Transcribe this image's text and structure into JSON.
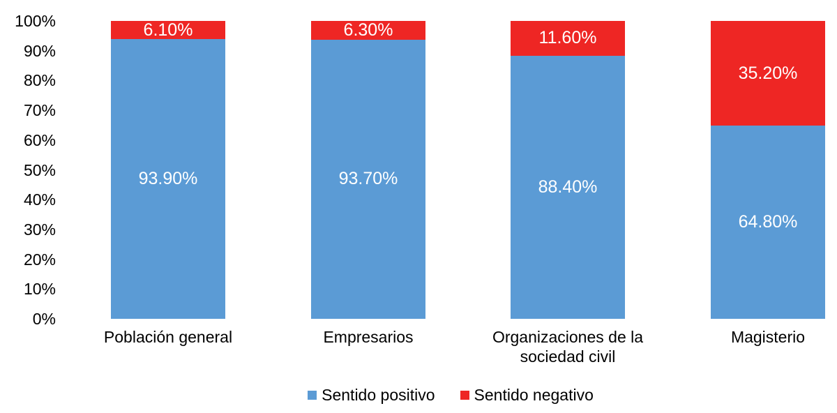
{
  "chart_data": {
    "type": "bar",
    "stacked": true,
    "percent_stacked": true,
    "title": "",
    "xlabel": "",
    "ylabel": "",
    "grid": false,
    "legend_position": "bottom",
    "categories": [
      "Población general",
      "Empresarios",
      "Organizaciones de la sociedad civil",
      "Magisterio"
    ],
    "series": [
      {
        "name": "Sentido positivo",
        "color": "#5B9BD5",
        "values": [
          93.9,
          93.7,
          88.4,
          64.8
        ],
        "labels": [
          "93.90%",
          "93.70%",
          "88.40%",
          "64.80%"
        ]
      },
      {
        "name": "Sentido negativo",
        "color": "#EE2624",
        "values": [
          6.1,
          6.3,
          11.6,
          35.2
        ],
        "labels": [
          "6.10%",
          "6.30%",
          "11.60%",
          "35.20%"
        ]
      }
    ],
    "y_axis": {
      "min": 0,
      "max": 100,
      "tick_step": 10,
      "tick_labels": [
        "0%",
        "10%",
        "20%",
        "30%",
        "40%",
        "50%",
        "60%",
        "70%",
        "80%",
        "90%",
        "100%"
      ]
    },
    "legend": [
      "Sentido positivo",
      "Sentido negativo"
    ]
  }
}
